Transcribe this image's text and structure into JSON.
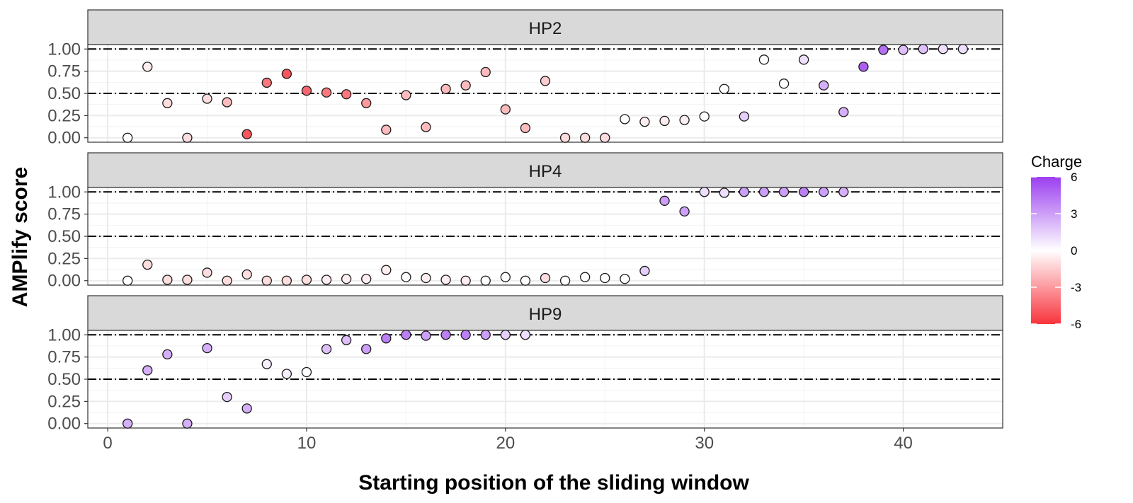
{
  "chart_data": {
    "type": "scatter",
    "xlabel": "Starting position of the sliding window",
    "ylabel": "AMPlify score",
    "xlim": [
      -1,
      45
    ],
    "ylim": [
      -0.05,
      1.05
    ],
    "x_ticks": [
      0,
      10,
      20,
      30,
      40
    ],
    "y_ticks": [
      0,
      0.25,
      0.5,
      0.75,
      1.0
    ],
    "y_tick_labels": [
      "0.00",
      "0.25",
      "0.50",
      "0.75",
      "1.00"
    ],
    "grid": true,
    "reference_lines": [
      0.5,
      1.0
    ],
    "legend": {
      "title": "Charge",
      "placement": "right",
      "ticks": [
        6,
        3,
        0,
        -3,
        -6
      ],
      "range": [
        -6,
        6
      ],
      "colors": {
        "low": "#f8333c",
        "mid": "#ffffff",
        "high": "#9b3ff0"
      }
    },
    "panels": [
      {
        "label": "HP2",
        "points": [
          {
            "x": 1,
            "y": 0.0,
            "charge": 0
          },
          {
            "x": 2,
            "y": 0.8,
            "charge": -0.5
          },
          {
            "x": 3,
            "y": 0.39,
            "charge": -1
          },
          {
            "x": 4,
            "y": 0.0,
            "charge": -1
          },
          {
            "x": 5,
            "y": 0.44,
            "charge": -1
          },
          {
            "x": 6,
            "y": 0.4,
            "charge": -2
          },
          {
            "x": 7,
            "y": 0.04,
            "charge": -5
          },
          {
            "x": 8,
            "y": 0.62,
            "charge": -4
          },
          {
            "x": 9,
            "y": 0.72,
            "charge": -5
          },
          {
            "x": 10,
            "y": 0.53,
            "charge": -4.5
          },
          {
            "x": 11,
            "y": 0.51,
            "charge": -4
          },
          {
            "x": 12,
            "y": 0.49,
            "charge": -4
          },
          {
            "x": 13,
            "y": 0.39,
            "charge": -3
          },
          {
            "x": 14,
            "y": 0.09,
            "charge": -2
          },
          {
            "x": 15,
            "y": 0.48,
            "charge": -2
          },
          {
            "x": 16,
            "y": 0.12,
            "charge": -2
          },
          {
            "x": 17,
            "y": 0.55,
            "charge": -2
          },
          {
            "x": 18,
            "y": 0.59,
            "charge": -2
          },
          {
            "x": 19,
            "y": 0.74,
            "charge": -2
          },
          {
            "x": 20,
            "y": 0.32,
            "charge": -2
          },
          {
            "x": 21,
            "y": 0.11,
            "charge": -2
          },
          {
            "x": 22,
            "y": 0.64,
            "charge": -1.5
          },
          {
            "x": 23,
            "y": 0.0,
            "charge": -1
          },
          {
            "x": 24,
            "y": 0.0,
            "charge": -1
          },
          {
            "x": 25,
            "y": 0.0,
            "charge": -1
          },
          {
            "x": 26,
            "y": 0.21,
            "charge": 0
          },
          {
            "x": 27,
            "y": 0.18,
            "charge": -0.5
          },
          {
            "x": 28,
            "y": 0.19,
            "charge": -0.5
          },
          {
            "x": 29,
            "y": 0.2,
            "charge": -0.5
          },
          {
            "x": 30,
            "y": 0.24,
            "charge": 0
          },
          {
            "x": 31,
            "y": 0.55,
            "charge": 0
          },
          {
            "x": 32,
            "y": 0.24,
            "charge": 1.5
          },
          {
            "x": 33,
            "y": 0.88,
            "charge": 0
          },
          {
            "x": 34,
            "y": 0.61,
            "charge": 0
          },
          {
            "x": 35,
            "y": 0.88,
            "charge": 1
          },
          {
            "x": 36,
            "y": 0.59,
            "charge": 2.5
          },
          {
            "x": 37,
            "y": 0.29,
            "charge": 2.5
          },
          {
            "x": 38,
            "y": 0.8,
            "charge": 5
          },
          {
            "x": 39,
            "y": 0.99,
            "charge": 4.5
          },
          {
            "x": 40,
            "y": 0.99,
            "charge": 2
          },
          {
            "x": 41,
            "y": 1.0,
            "charge": 2
          },
          {
            "x": 42,
            "y": 1.0,
            "charge": 1
          },
          {
            "x": 43,
            "y": 1.0,
            "charge": 1
          }
        ]
      },
      {
        "label": "HP4",
        "points": [
          {
            "x": 1,
            "y": 0.0,
            "charge": 0
          },
          {
            "x": 2,
            "y": 0.18,
            "charge": -1
          },
          {
            "x": 3,
            "y": 0.01,
            "charge": -1
          },
          {
            "x": 4,
            "y": 0.01,
            "charge": -1
          },
          {
            "x": 5,
            "y": 0.09,
            "charge": -1
          },
          {
            "x": 6,
            "y": 0.0,
            "charge": -1
          },
          {
            "x": 7,
            "y": 0.07,
            "charge": -1
          },
          {
            "x": 8,
            "y": 0.0,
            "charge": -1
          },
          {
            "x": 9,
            "y": 0.0,
            "charge": -1
          },
          {
            "x": 10,
            "y": 0.01,
            "charge": -1
          },
          {
            "x": 11,
            "y": 0.01,
            "charge": -0.5
          },
          {
            "x": 12,
            "y": 0.02,
            "charge": -0.5
          },
          {
            "x": 13,
            "y": 0.02,
            "charge": -0.5
          },
          {
            "x": 14,
            "y": 0.12,
            "charge": -0.5
          },
          {
            "x": 15,
            "y": 0.04,
            "charge": 0
          },
          {
            "x": 16,
            "y": 0.03,
            "charge": -0.5
          },
          {
            "x": 17,
            "y": 0.01,
            "charge": -0.5
          },
          {
            "x": 18,
            "y": 0.0,
            "charge": -0.5
          },
          {
            "x": 19,
            "y": 0.0,
            "charge": 0
          },
          {
            "x": 20,
            "y": 0.04,
            "charge": 0
          },
          {
            "x": 21,
            "y": 0.0,
            "charge": 0
          },
          {
            "x": 22,
            "y": 0.03,
            "charge": -1
          },
          {
            "x": 23,
            "y": 0.0,
            "charge": 0
          },
          {
            "x": 24,
            "y": 0.04,
            "charge": 0
          },
          {
            "x": 25,
            "y": 0.03,
            "charge": 0
          },
          {
            "x": 26,
            "y": 0.02,
            "charge": 0
          },
          {
            "x": 27,
            "y": 0.11,
            "charge": 1.5
          },
          {
            "x": 28,
            "y": 0.9,
            "charge": 3
          },
          {
            "x": 29,
            "y": 0.78,
            "charge": 3
          },
          {
            "x": 30,
            "y": 1.0,
            "charge": 1
          },
          {
            "x": 31,
            "y": 0.99,
            "charge": 1
          },
          {
            "x": 32,
            "y": 1.0,
            "charge": 3
          },
          {
            "x": 33,
            "y": 1.0,
            "charge": 3
          },
          {
            "x": 34,
            "y": 1.0,
            "charge": 3
          },
          {
            "x": 35,
            "y": 1.0,
            "charge": 4
          },
          {
            "x": 36,
            "y": 1.0,
            "charge": 3
          },
          {
            "x": 37,
            "y": 1.0,
            "charge": 2.5
          }
        ]
      },
      {
        "label": "HP9",
        "points": [
          {
            "x": 1,
            "y": 0.0,
            "charge": 2.5
          },
          {
            "x": 2,
            "y": 0.6,
            "charge": 2.5
          },
          {
            "x": 3,
            "y": 0.78,
            "charge": 2.5
          },
          {
            "x": 4,
            "y": 0.0,
            "charge": 2.5
          },
          {
            "x": 5,
            "y": 0.85,
            "charge": 2.5
          },
          {
            "x": 6,
            "y": 0.3,
            "charge": 1.5
          },
          {
            "x": 7,
            "y": 0.17,
            "charge": 2.5
          },
          {
            "x": 8,
            "y": 0.67,
            "charge": 0.5
          },
          {
            "x": 9,
            "y": 0.56,
            "charge": 0.5
          },
          {
            "x": 10,
            "y": 0.58,
            "charge": 0
          },
          {
            "x": 11,
            "y": 0.84,
            "charge": 2
          },
          {
            "x": 12,
            "y": 0.94,
            "charge": 2
          },
          {
            "x": 13,
            "y": 0.84,
            "charge": 3
          },
          {
            "x": 14,
            "y": 0.96,
            "charge": 4
          },
          {
            "x": 15,
            "y": 1.0,
            "charge": 4
          },
          {
            "x": 16,
            "y": 0.99,
            "charge": 3
          },
          {
            "x": 17,
            "y": 1.0,
            "charge": 4
          },
          {
            "x": 18,
            "y": 1.0,
            "charge": 4
          },
          {
            "x": 19,
            "y": 1.0,
            "charge": 3
          },
          {
            "x": 20,
            "y": 1.0,
            "charge": 1.5
          },
          {
            "x": 21,
            "y": 1.0,
            "charge": 1
          }
        ]
      }
    ]
  }
}
